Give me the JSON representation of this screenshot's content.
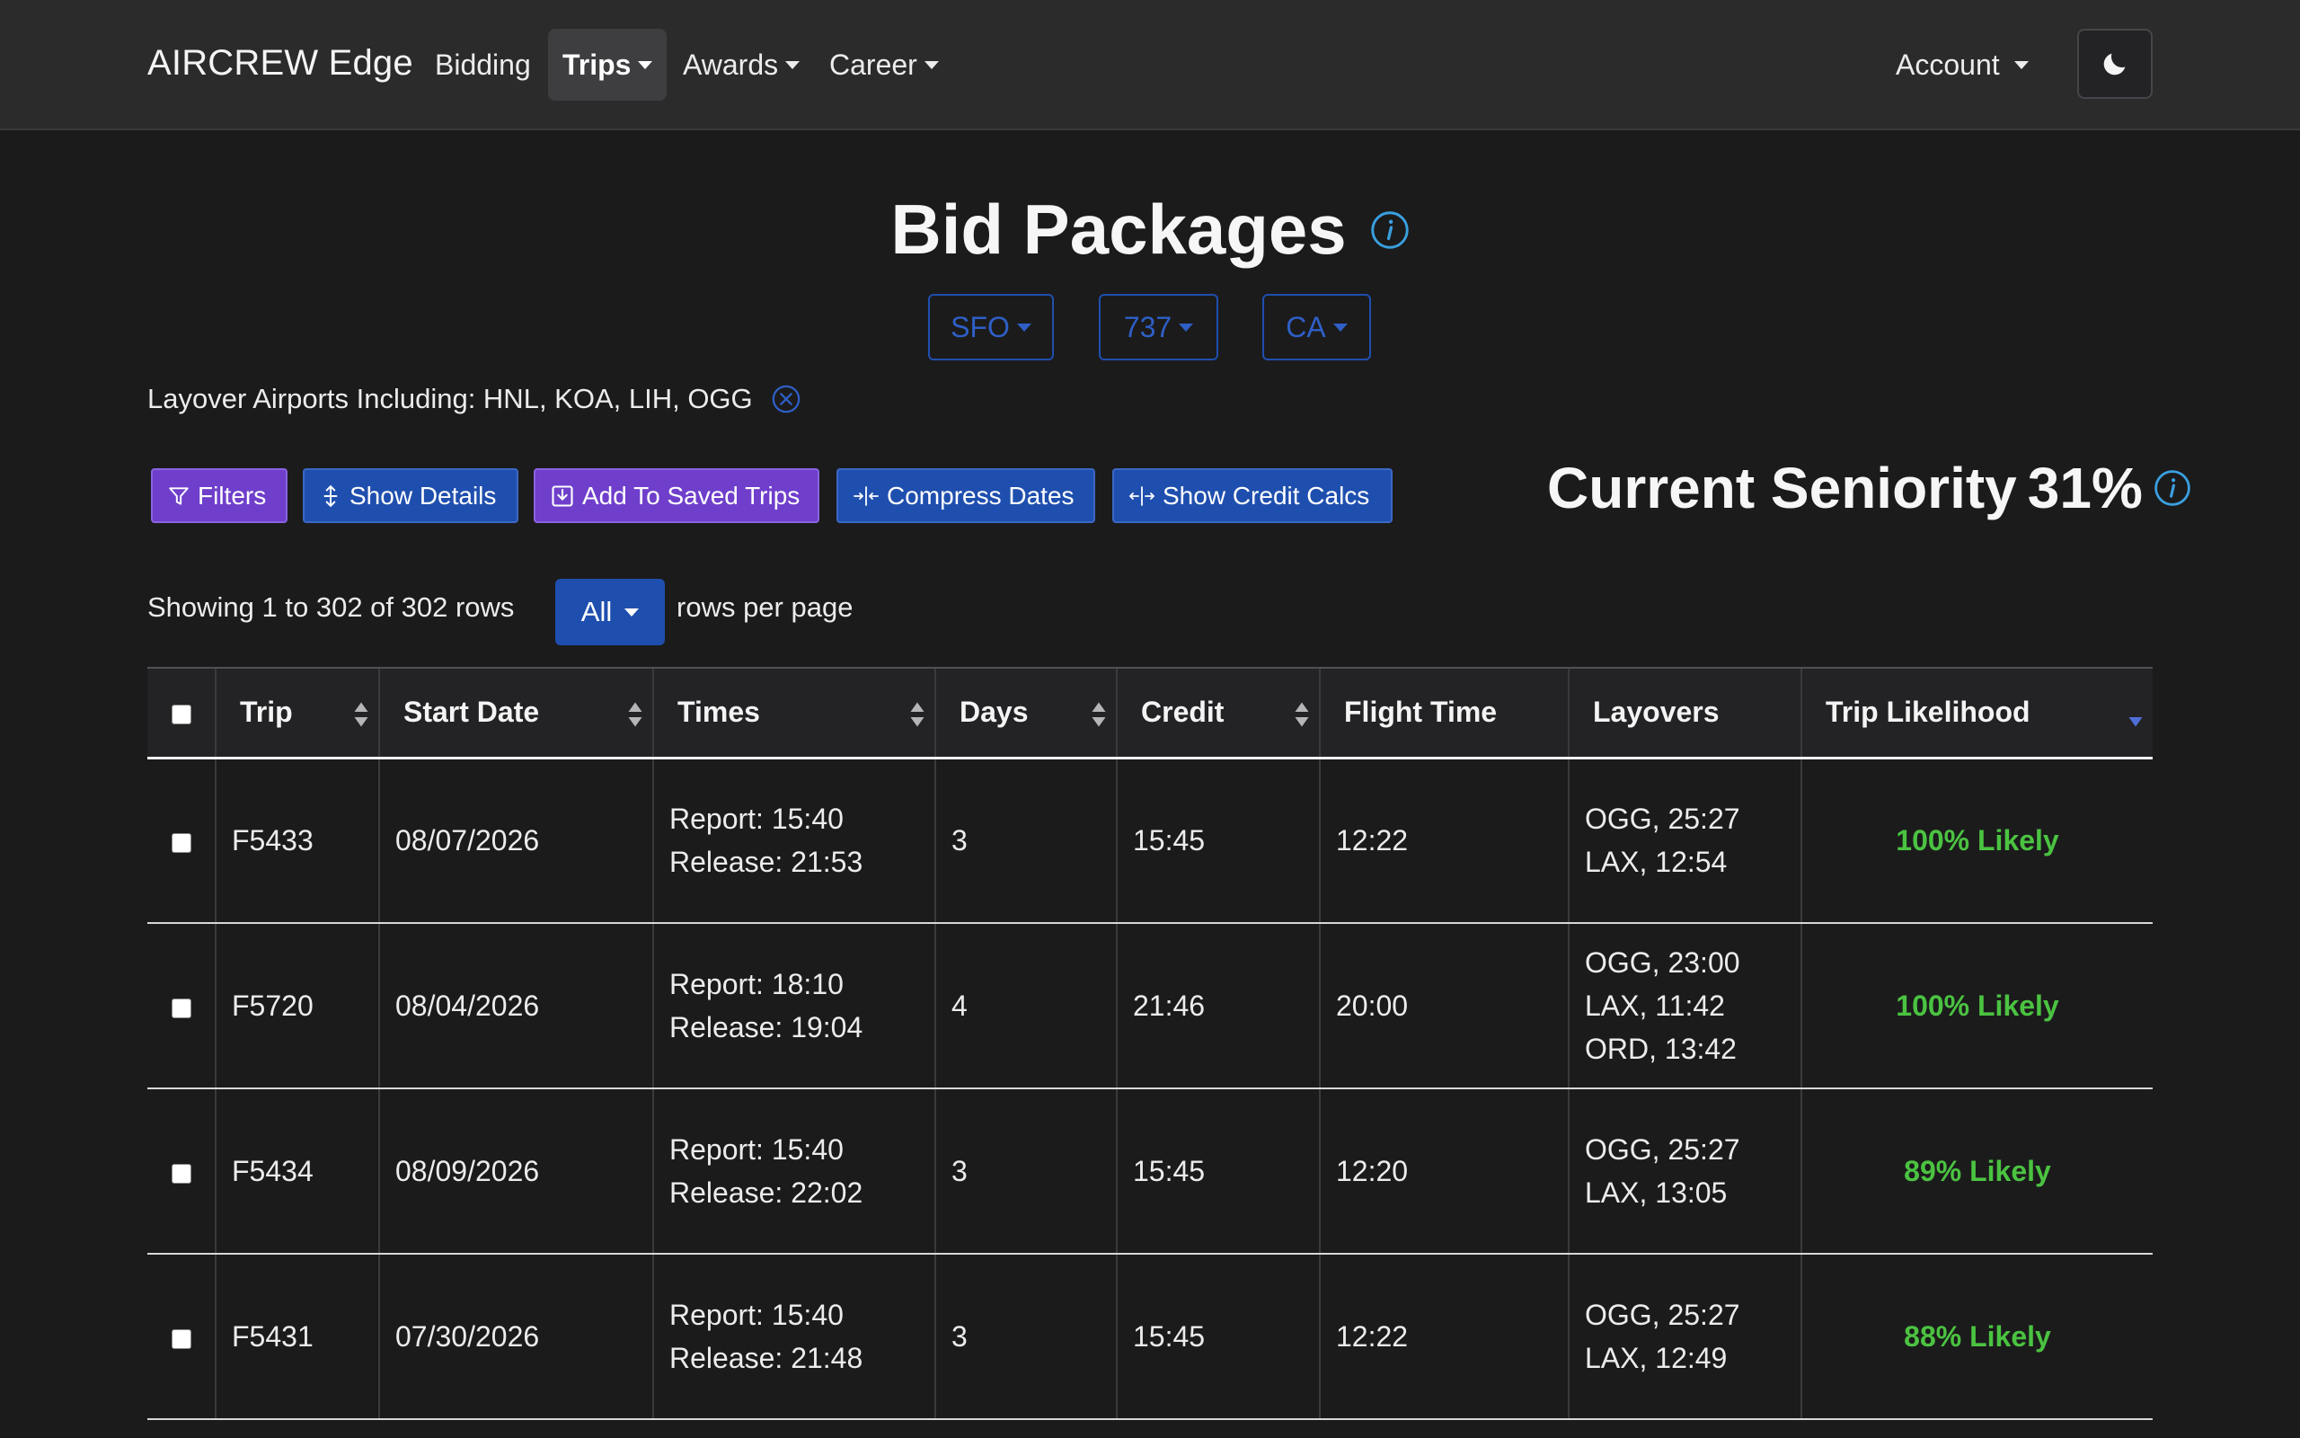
{
  "navbar": {
    "brand": "AIRCREW Edge",
    "items": [
      {
        "label": "Bidding"
      },
      {
        "label": "Trips"
      },
      {
        "label": "Awards"
      },
      {
        "label": "Career"
      }
    ],
    "account": "Account",
    "theme_icon": "moon-icon"
  },
  "header": {
    "title": "Bid Packages",
    "base": "SFO",
    "aircraft": "737",
    "position": "CA"
  },
  "filter": {
    "layover_label": "Layover Airports Including: HNL, KOA, LIH, OGG"
  },
  "toolbar": {
    "filters": "Filters",
    "show_details": "Show Details",
    "add_saved": "Add To Saved Trips",
    "compress_dates": "Compress Dates",
    "show_credit": "Show Credit Calcs"
  },
  "seniority": {
    "label": "Current Seniority",
    "value": "31%"
  },
  "pagination": {
    "showing": "Showing 1 to 302 of 302 rows",
    "rows_value": "All",
    "rows_per_page": "rows per page"
  },
  "table": {
    "headers": {
      "trip": "Trip",
      "start_date": "Start Date",
      "times": "Times",
      "days": "Days",
      "credit": "Credit",
      "flight_time": "Flight Time",
      "layovers": "Layovers",
      "likelihood": "Trip Likelihood"
    },
    "rows": [
      {
        "trip": "F5433",
        "start_date": "08/07/2026",
        "report": "Report: 15:40",
        "release": "Release: 21:53",
        "days": "3",
        "credit": "15:45",
        "flight_time": "12:22",
        "layover1": "OGG, 25:27",
        "layover2": "LAX, 12:54",
        "layover3": "",
        "likelihood": "100% Likely"
      },
      {
        "trip": "F5720",
        "start_date": "08/04/2026",
        "report": "Report: 18:10",
        "release": "Release: 19:04",
        "days": "4",
        "credit": "21:46",
        "flight_time": "20:00",
        "layover1": "OGG, 23:00",
        "layover2": "LAX, 11:42",
        "layover3": "ORD, 13:42",
        "likelihood": "100% Likely"
      },
      {
        "trip": "F5434",
        "start_date": "08/09/2026",
        "report": "Report: 15:40",
        "release": "Release: 22:02",
        "days": "3",
        "credit": "15:45",
        "flight_time": "12:20",
        "layover1": "OGG, 25:27",
        "layover2": "LAX, 13:05",
        "layover3": "",
        "likelihood": "89% Likely"
      },
      {
        "trip": "F5431",
        "start_date": "07/30/2026",
        "report": "Report: 15:40",
        "release": "Release: 21:48",
        "days": "3",
        "credit": "15:45",
        "flight_time": "12:22",
        "layover1": "OGG, 25:27",
        "layover2": "LAX, 12:49",
        "layover3": "",
        "likelihood": "88% Likely"
      }
    ]
  },
  "colors": {
    "background": "#1b1b1c",
    "navbar": "#2b2b2c",
    "primary_blue": "#1f4fae",
    "purple": "#6f3fcb",
    "likely_green": "#4bc341",
    "info_blue": "#3aa0e0"
  }
}
